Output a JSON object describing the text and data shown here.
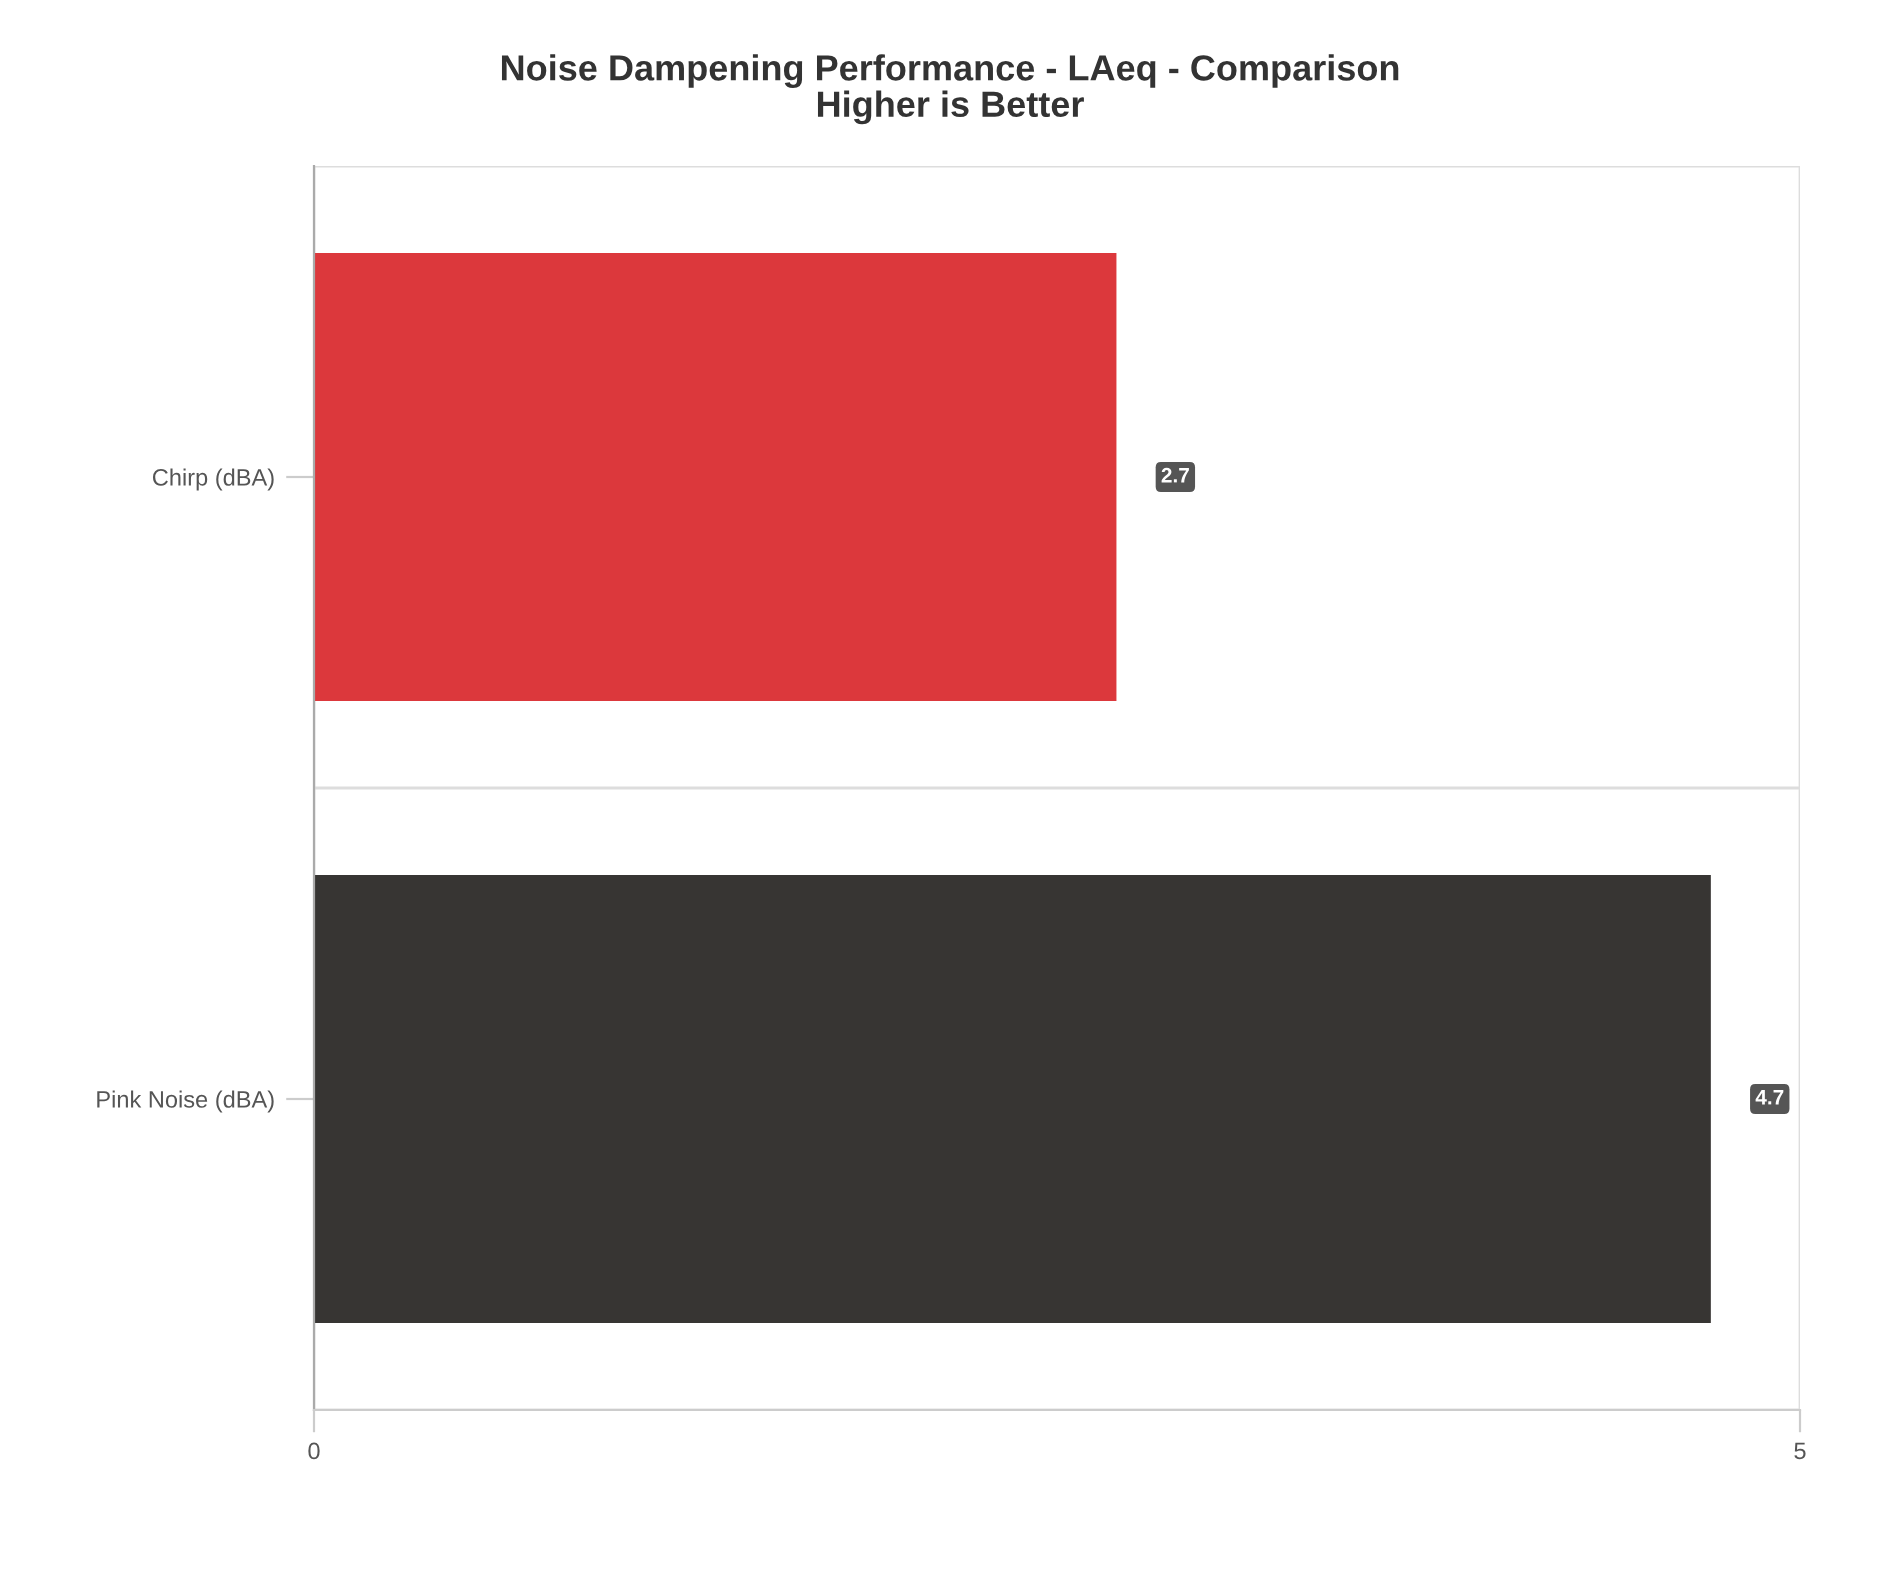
{
  "chart_data": {
    "type": "bar",
    "orientation": "horizontal",
    "title": "Noise Dampening Performance - LAeq - Comparison",
    "subtitle": "Higher is Better",
    "categories": [
      "Chirp (dBA)",
      "Pink Noise (dBA)"
    ],
    "values": [
      2.7,
      4.7
    ],
    "colors": [
      "#dc383c",
      "#373533"
    ],
    "xlim": [
      0,
      5
    ],
    "xticks": [
      0,
      5
    ],
    "grid": true,
    "data_labels": true
  }
}
